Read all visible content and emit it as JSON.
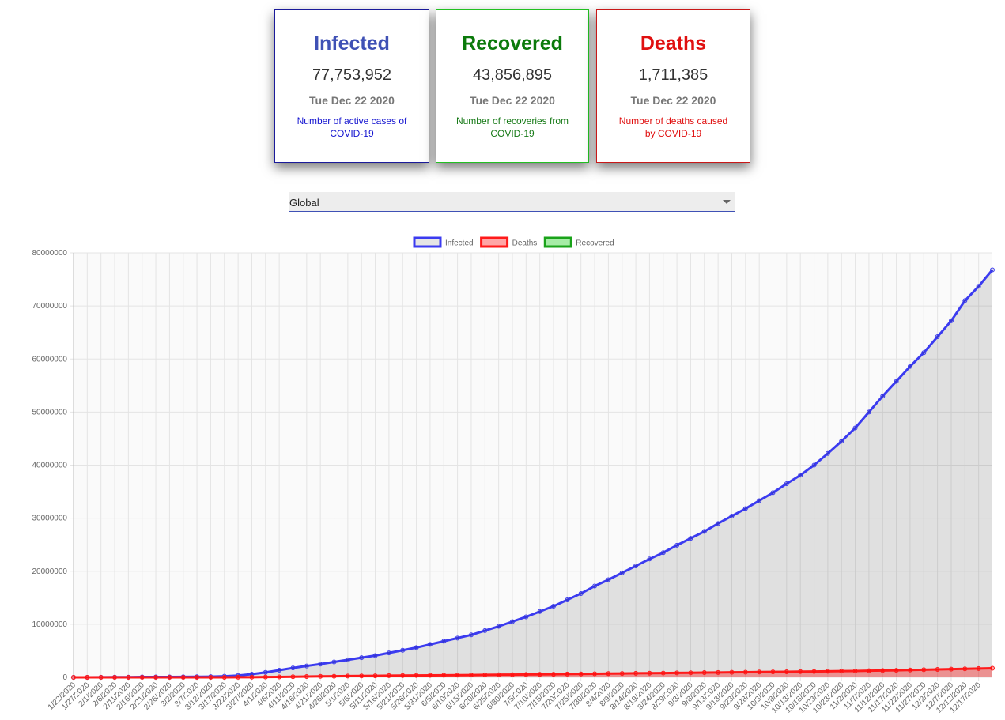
{
  "cards": [
    {
      "title": "Infected",
      "value": "77,753,952",
      "date": "Tue Dec 22 2020",
      "description": "Number of active cases of COVID-19"
    },
    {
      "title": "Recovered",
      "value": "43,856,895",
      "date": "Tue Dec 22 2020",
      "description": "Number of recoveries from COVID-19"
    },
    {
      "title": "Deaths",
      "value": "1,711,385",
      "date": "Tue Dec 22 2020",
      "description": "Number of deaths caused by COVID-19"
    }
  ],
  "selector": {
    "value": "Global"
  },
  "chart_data": {
    "type": "line",
    "categories": [
      "1/22/2020",
      "1/27/2020",
      "2/1/2020",
      "2/6/2020",
      "2/11/2020",
      "2/16/2020",
      "2/21/2020",
      "2/26/2020",
      "3/2/2020",
      "3/7/2020",
      "3/12/2020",
      "3/17/2020",
      "3/22/2020",
      "3/27/2020",
      "4/1/2020",
      "4/6/2020",
      "4/11/2020",
      "4/16/2020",
      "4/21/2020",
      "4/26/2020",
      "5/1/2020",
      "5/6/2020",
      "5/11/2020",
      "5/16/2020",
      "5/21/2020",
      "5/26/2020",
      "5/31/2020",
      "6/5/2020",
      "6/10/2020",
      "6/15/2020",
      "6/20/2020",
      "6/25/2020",
      "6/30/2020",
      "7/5/2020",
      "7/10/2020",
      "7/15/2020",
      "7/20/2020",
      "7/25/2020",
      "7/30/2020",
      "8/4/2020",
      "8/9/2020",
      "8/14/2020",
      "8/19/2020",
      "8/24/2020",
      "8/29/2020",
      "9/3/2020",
      "9/8/2020",
      "9/13/2020",
      "9/18/2020",
      "9/23/2020",
      "9/28/2020",
      "10/3/2020",
      "10/8/2020",
      "10/13/2020",
      "10/18/2020",
      "10/23/2020",
      "10/28/2020",
      "11/2/2020",
      "11/7/2020",
      "11/12/2020",
      "11/17/2020",
      "11/22/2020",
      "11/27/2020",
      "12/2/2020",
      "12/7/2020",
      "12/12/2020",
      "12/17/2020",
      null
    ],
    "series": [
      {
        "name": "Infected",
        "color": "#3b3bf0",
        "fill": "rgba(0,0,0,0.1)",
        "values": [
          555,
          2927,
          12038,
          30818,
          45226,
          71226,
          77245,
          81400,
          90400,
          106000,
          128000,
          198000,
          337000,
          590000,
          930000,
          1340000,
          1770000,
          2150000,
          2500000,
          2900000,
          3300000,
          3700000,
          4100000,
          4600000,
          5100000,
          5600000,
          6200000,
          6800000,
          7400000,
          8000000,
          8800000,
          9600000,
          10500000,
          11400000,
          12400000,
          13400000,
          14600000,
          15800000,
          17200000,
          18400000,
          19700000,
          21000000,
          22300000,
          23500000,
          24900000,
          26200000,
          27500000,
          29000000,
          30400000,
          31800000,
          33300000,
          34800000,
          36500000,
          38100000,
          40000000,
          42200000,
          44500000,
          47000000,
          50000000,
          53000000,
          55800000,
          58600000,
          61200000,
          64200000,
          67200000,
          71000000,
          73700000,
          76800000
        ]
      },
      {
        "name": "Deaths",
        "color": "#ff1a1a",
        "fill": "rgba(255,0,0,0.35)",
        "values": [
          17,
          82,
          259,
          565,
          1013,
          1770,
          2360,
          2770,
          3085,
          3558,
          4720,
          8000,
          14600,
          27600,
          47500,
          74500,
          108000,
          146000,
          178000,
          206000,
          236000,
          264000,
          286000,
          310000,
          330000,
          350000,
          370000,
          390000,
          415000,
          435000,
          460000,
          490000,
          510000,
          535000,
          560000,
          580000,
          610000,
          640000,
          670000,
          700000,
          730000,
          760000,
          790000,
          810000,
          840000,
          865000,
          890000,
          920000,
          945000,
          970000,
          1000000,
          1030000,
          1050000,
          1080000,
          1100000,
          1140000,
          1170000,
          1200000,
          1240000,
          1280000,
          1330000,
          1380000,
          1430000,
          1490000,
          1540000,
          1600000,
          1660000,
          1710000
        ]
      },
      {
        "name": "Recovered",
        "color": "#1aa31a",
        "fill": "rgba(0,200,0,0.35)",
        "values": [
          null,
          null,
          null,
          null,
          null,
          null,
          null,
          null,
          null,
          null,
          null,
          null,
          null,
          null,
          null,
          null,
          null,
          null,
          null,
          null,
          null,
          null,
          null,
          null,
          null,
          null,
          null,
          null,
          null,
          null,
          null,
          null,
          null,
          null,
          null,
          null,
          null,
          null,
          null,
          null,
          null,
          null,
          null,
          null,
          null,
          null,
          null,
          null,
          null,
          null,
          null,
          null,
          null,
          null,
          null,
          null,
          null,
          null,
          null,
          null,
          null,
          null,
          null,
          null,
          null,
          null,
          null,
          null
        ]
      }
    ],
    "ylim": [
      0,
      80000000
    ],
    "yticks": [
      0,
      10000000,
      20000000,
      30000000,
      40000000,
      50000000,
      60000000,
      70000000,
      80000000
    ],
    "grid": true,
    "legend": "top"
  }
}
